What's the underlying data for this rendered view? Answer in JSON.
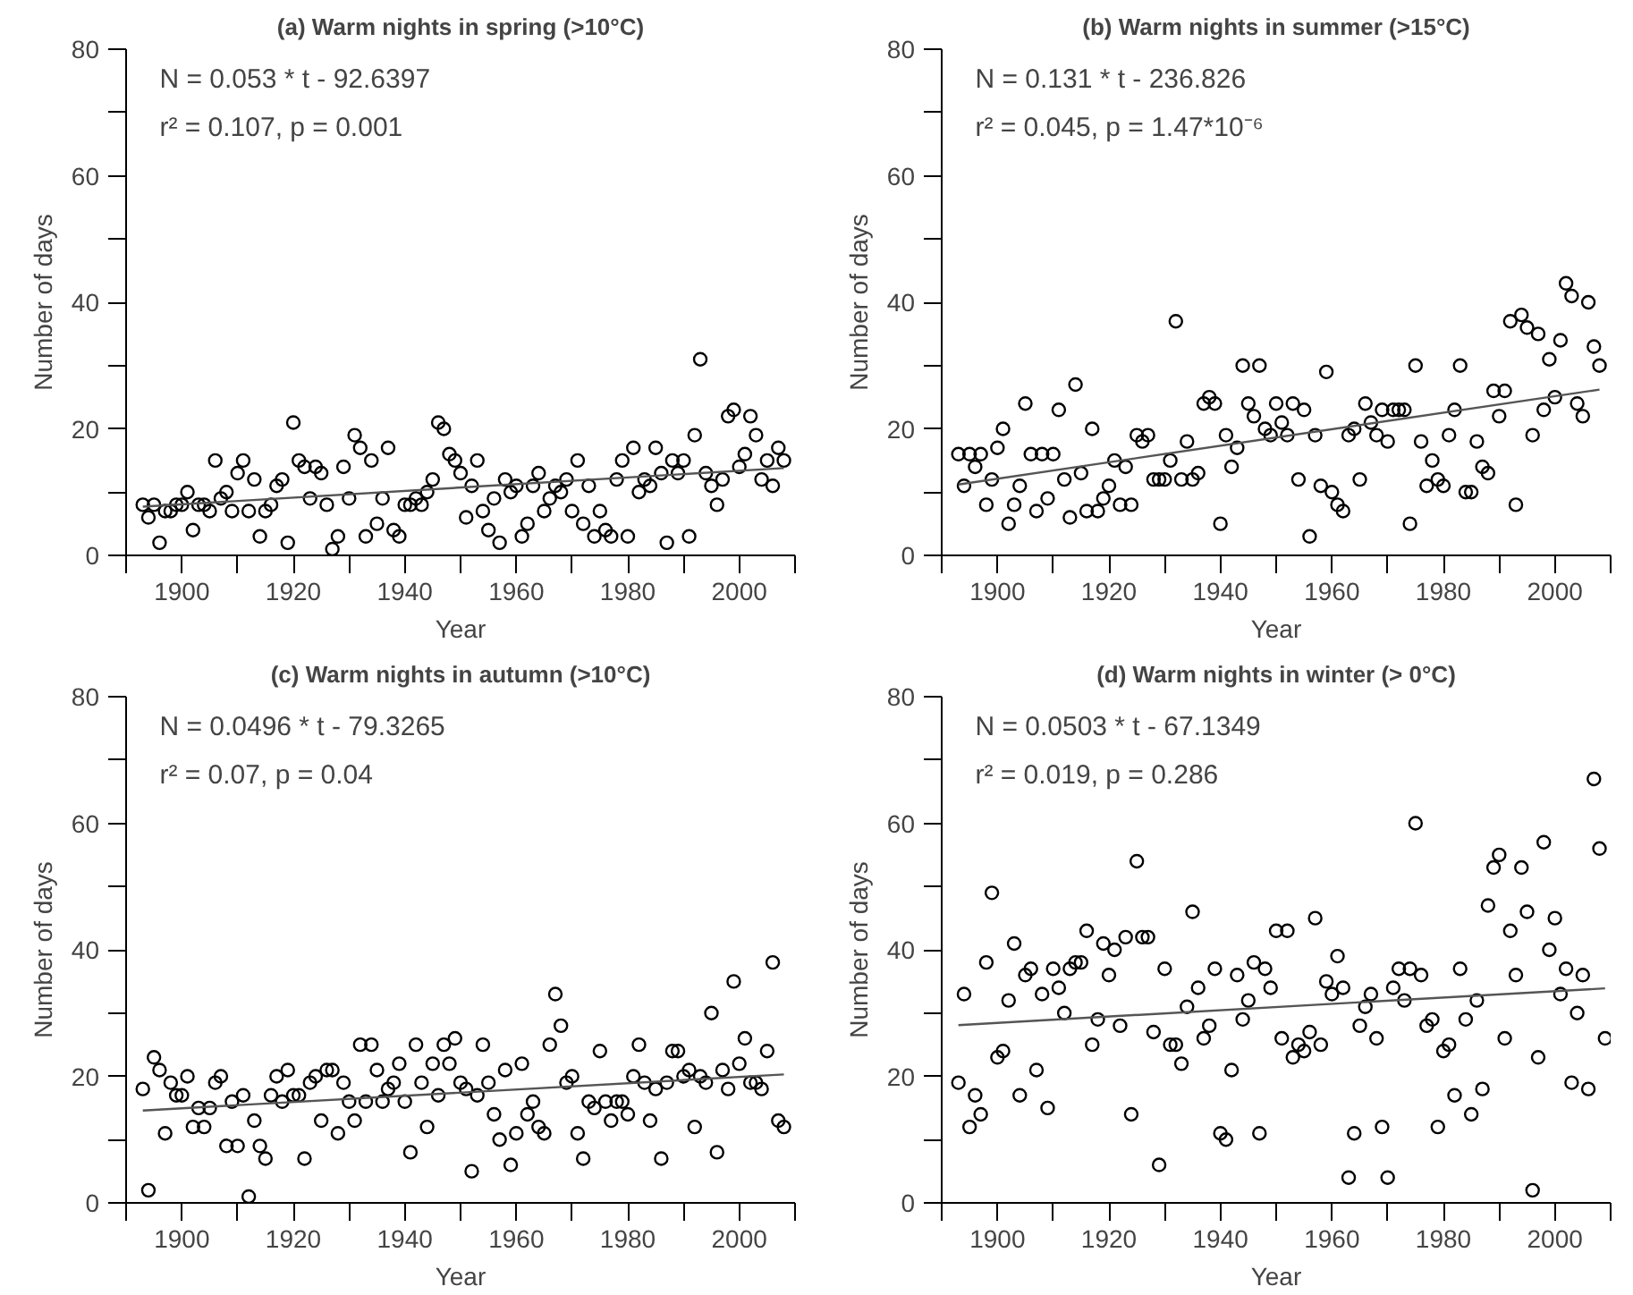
{
  "chart_data": [
    {
      "type": "scatter",
      "title": "(a) Warm nights in spring (>10°C)",
      "xlabel": "Year",
      "ylabel": "Number of days",
      "marker": "circle",
      "xlim": [
        1890,
        2010
      ],
      "ylim": [
        0,
        80
      ],
      "xticks": [
        {
          "value": 1890,
          "label": null
        },
        1900,
        {
          "value": 1910,
          "label": null
        },
        1920,
        {
          "value": 1930,
          "label": null
        },
        1940,
        {
          "value": 1950,
          "label": null
        },
        1960,
        {
          "value": 1970,
          "label": null
        },
        1980,
        {
          "value": 1990,
          "label": null
        },
        2000,
        {
          "value": 2010,
          "label": null
        }
      ],
      "yticks": [
        0,
        {
          "value": 10,
          "label": null
        },
        20,
        {
          "value": 30,
          "label": null
        },
        40,
        {
          "value": 50,
          "label": null
        },
        60,
        {
          "value": 70,
          "label": null
        },
        80
      ],
      "annotations": [
        "N = 0.053 * t - 92.6397",
        "r² = 0.107, p = 0.001"
      ],
      "series": [
        {
          "color": "#000000",
          "x": [
            1893,
            1894,
            1895,
            1896,
            1897,
            1898,
            1899,
            1900,
            1901,
            1902,
            1903,
            1904,
            1905,
            1906,
            1907,
            1908,
            1909,
            1910,
            1911,
            1912,
            1913,
            1914,
            1915,
            1916,
            1917,
            1918,
            1919,
            1920,
            1921,
            1922,
            1923,
            1924,
            1925,
            1926,
            1927,
            1928,
            1929,
            1930,
            1931,
            1932,
            1933,
            1934,
            1935,
            1936,
            1937,
            1938,
            1939,
            1940,
            1941,
            1942,
            1943,
            1944,
            1945,
            1946,
            1947,
            1948,
            1949,
            1950,
            1951,
            1952,
            1953,
            1954,
            1955,
            1956,
            1957,
            1958,
            1959,
            1960,
            1961,
            1962,
            1963,
            1964,
            1965,
            1966,
            1967,
            1968,
            1969,
            1970,
            1971,
            1972,
            1973,
            1974,
            1975,
            1976,
            1977,
            1978,
            1979,
            1980,
            1981,
            1982,
            1983,
            1984,
            1985,
            1986,
            1987,
            1988,
            1989,
            1990,
            1991,
            1992,
            1993,
            1994,
            1995,
            1996,
            1997,
            1998,
            1999,
            2000,
            2001,
            2002,
            2003,
            2004,
            2005,
            2006,
            2007,
            2008
          ],
          "values": [
            8,
            6,
            8,
            2,
            7,
            7,
            8,
            8,
            10,
            4,
            8,
            8,
            7,
            15,
            9,
            10,
            7,
            13,
            15,
            7,
            12,
            3,
            7,
            8,
            11,
            12,
            2,
            21,
            15,
            14,
            9,
            14,
            13,
            8,
            1,
            3,
            14,
            9,
            19,
            17,
            3,
            15,
            5,
            9,
            17,
            4,
            3,
            8,
            8,
            9,
            8,
            10,
            12,
            21,
            20,
            16,
            15,
            13,
            6,
            11,
            15,
            7,
            4,
            9,
            2,
            12,
            10,
            11,
            3,
            5,
            11,
            13,
            7,
            9,
            11,
            10,
            12,
            7,
            15,
            5,
            11,
            3,
            7,
            4,
            3,
            12,
            15,
            3,
            17,
            10,
            12,
            11,
            17,
            13,
            2,
            15,
            13,
            15,
            3,
            19,
            31,
            13,
            11,
            8,
            12,
            22,
            23,
            14,
            16,
            22,
            19,
            12,
            15,
            11,
            17,
            15
          ]
        },
        {
          "type": "line",
          "marker": "none",
          "color": "#555555",
          "x": [
            1893,
            2008
          ],
          "values": [
            7.7,
            13.8
          ]
        }
      ]
    },
    {
      "type": "scatter",
      "title": "(b) Warm nights in summer (>15°C)",
      "xlabel": "Year",
      "ylabel": "Number of days",
      "marker": "circle",
      "xlim": [
        1890,
        2010
      ],
      "ylim": [
        0,
        80
      ],
      "xticks": [
        {
          "value": 1890,
          "label": null
        },
        1900,
        {
          "value": 1910,
          "label": null
        },
        1920,
        {
          "value": 1930,
          "label": null
        },
        1940,
        {
          "value": 1950,
          "label": null
        },
        1960,
        {
          "value": 1970,
          "label": null
        },
        1980,
        {
          "value": 1990,
          "label": null
        },
        2000,
        {
          "value": 2010,
          "label": null
        }
      ],
      "yticks": [
        0,
        {
          "value": 10,
          "label": null
        },
        20,
        {
          "value": 30,
          "label": null
        },
        40,
        {
          "value": 50,
          "label": null
        },
        60,
        {
          "value": 70,
          "label": null
        },
        80
      ],
      "annotations": [
        "N = 0.131 * t - 236.826",
        "r² = 0.045, p = 1.47*10⁻⁶"
      ],
      "series": [
        {
          "color": "#000000",
          "x": [
            1893,
            1894,
            1895,
            1896,
            1897,
            1898,
            1899,
            1900,
            1901,
            1902,
            1903,
            1904,
            1905,
            1906,
            1907,
            1908,
            1909,
            1910,
            1911,
            1912,
            1913,
            1914,
            1915,
            1916,
            1917,
            1918,
            1919,
            1920,
            1921,
            1922,
            1923,
            1924,
            1925,
            1926,
            1927,
            1928,
            1929,
            1930,
            1931,
            1932,
            1933,
            1934,
            1935,
            1936,
            1937,
            1938,
            1939,
            1940,
            1941,
            1942,
            1943,
            1944,
            1945,
            1946,
            1947,
            1948,
            1949,
            1950,
            1951,
            1952,
            1953,
            1954,
            1955,
            1956,
            1957,
            1958,
            1959,
            1960,
            1961,
            1962,
            1963,
            1964,
            1965,
            1966,
            1967,
            1968,
            1969,
            1970,
            1971,
            1972,
            1973,
            1974,
            1975,
            1976,
            1977,
            1978,
            1979,
            1980,
            1981,
            1982,
            1983,
            1984,
            1985,
            1986,
            1987,
            1988,
            1989,
            1990,
            1991,
            1992,
            1993,
            1994,
            1995,
            1996,
            1997,
            1998,
            1999,
            2000,
            2001,
            2002,
            2003,
            2004,
            2005,
            2006,
            2007,
            2008
          ],
          "values": [
            16,
            11,
            16,
            14,
            16,
            8,
            12,
            17,
            20,
            5,
            8,
            11,
            24,
            16,
            7,
            16,
            9,
            16,
            23,
            12,
            6,
            27,
            13,
            7,
            20,
            7,
            9,
            11,
            15,
            8,
            14,
            8,
            19,
            18,
            19,
            12,
            12,
            12,
            15,
            37,
            12,
            18,
            12,
            13,
            24,
            25,
            24,
            5,
            19,
            14,
            17,
            30,
            24,
            22,
            30,
            20,
            19,
            24,
            21,
            19,
            24,
            12,
            23,
            3,
            19,
            11,
            29,
            10,
            8,
            7,
            19,
            20,
            12,
            24,
            21,
            19,
            23,
            18,
            23,
            23,
            23,
            5,
            30,
            18,
            11,
            15,
            12,
            11,
            19,
            23,
            30,
            10,
            10,
            18,
            14,
            13,
            26,
            22,
            26,
            37,
            8,
            38,
            36,
            19,
            35,
            23,
            31,
            25,
            34,
            43,
            41,
            24,
            22,
            40,
            33,
            30
          ]
        },
        {
          "type": "line",
          "marker": "none",
          "color": "#555555",
          "x": [
            1893,
            2008
          ],
          "values": [
            11.2,
            26.2
          ]
        }
      ]
    },
    {
      "type": "scatter",
      "title": "(c) Warm nights in autumn (>10°C)",
      "xlabel": "Year",
      "ylabel": "Number of days",
      "marker": "circle",
      "xlim": [
        1890,
        2010
      ],
      "ylim": [
        0,
        80
      ],
      "xticks": [
        {
          "value": 1890,
          "label": null
        },
        1900,
        {
          "value": 1910,
          "label": null
        },
        1920,
        {
          "value": 1930,
          "label": null
        },
        1940,
        {
          "value": 1950,
          "label": null
        },
        1960,
        {
          "value": 1970,
          "label": null
        },
        1980,
        {
          "value": 1990,
          "label": null
        },
        2000,
        {
          "value": 2010,
          "label": null
        }
      ],
      "yticks": [
        0,
        {
          "value": 10,
          "label": null
        },
        20,
        {
          "value": 30,
          "label": null
        },
        40,
        {
          "value": 50,
          "label": null
        },
        60,
        {
          "value": 70,
          "label": null
        },
        80
      ],
      "annotations": [
        "N = 0.0496 * t - 79.3265",
        "r² = 0.07, p = 0.04"
      ],
      "series": [
        {
          "color": "#000000",
          "x": [
            1893,
            1894,
            1895,
            1896,
            1897,
            1898,
            1899,
            1900,
            1901,
            1902,
            1903,
            1904,
            1905,
            1906,
            1907,
            1908,
            1909,
            1910,
            1911,
            1912,
            1913,
            1914,
            1915,
            1916,
            1917,
            1918,
            1919,
            1920,
            1921,
            1922,
            1923,
            1924,
            1925,
            1926,
            1927,
            1928,
            1929,
            1930,
            1931,
            1932,
            1933,
            1934,
            1935,
            1936,
            1937,
            1938,
            1939,
            1940,
            1941,
            1942,
            1943,
            1944,
            1945,
            1946,
            1947,
            1948,
            1949,
            1950,
            1951,
            1952,
            1953,
            1954,
            1955,
            1956,
            1957,
            1958,
            1959,
            1960,
            1961,
            1962,
            1963,
            1964,
            1965,
            1966,
            1967,
            1968,
            1969,
            1970,
            1971,
            1972,
            1973,
            1974,
            1975,
            1976,
            1977,
            1978,
            1979,
            1980,
            1981,
            1982,
            1983,
            1984,
            1985,
            1986,
            1987,
            1988,
            1989,
            1990,
            1991,
            1992,
            1993,
            1994,
            1995,
            1996,
            1997,
            1998,
            1999,
            2000,
            2001,
            2002,
            2003,
            2004,
            2005,
            2006,
            2007,
            2008
          ],
          "values": [
            18,
            2,
            23,
            21,
            11,
            19,
            17,
            17,
            20,
            12,
            15,
            12,
            15,
            19,
            20,
            9,
            16,
            9,
            17,
            1,
            13,
            9,
            7,
            17,
            20,
            16,
            21,
            17,
            17,
            7,
            19,
            20,
            13,
            21,
            21,
            11,
            19,
            16,
            13,
            25,
            16,
            25,
            21,
            16,
            18,
            19,
            22,
            16,
            8,
            25,
            19,
            12,
            22,
            17,
            25,
            22,
            26,
            19,
            18,
            5,
            17,
            25,
            19,
            14,
            10,
            21,
            6,
            11,
            22,
            14,
            16,
            12,
            11,
            25,
            33,
            28,
            19,
            20,
            11,
            7,
            16,
            15,
            24,
            16,
            13,
            16,
            16,
            14,
            20,
            25,
            19,
            13,
            18,
            7,
            19,
            24,
            24,
            20,
            21,
            12,
            20,
            19,
            30,
            8,
            21,
            18,
            35,
            22,
            26,
            19,
            19,
            18,
            24,
            38,
            13,
            12
          ]
        },
        {
          "type": "line",
          "marker": "none",
          "color": "#555555",
          "x": [
            1893,
            2008
          ],
          "values": [
            14.6,
            20.3
          ]
        }
      ]
    },
    {
      "type": "scatter",
      "title": "(d) Warm nights in winter (> 0°C)",
      "xlabel": "Year",
      "ylabel": "Number of days",
      "marker": "circle",
      "xlim": [
        1890,
        2010
      ],
      "ylim": [
        0,
        80
      ],
      "xticks": [
        {
          "value": 1890,
          "label": null
        },
        1900,
        {
          "value": 1910,
          "label": null
        },
        1920,
        {
          "value": 1930,
          "label": null
        },
        1940,
        {
          "value": 1950,
          "label": null
        },
        1960,
        {
          "value": 1970,
          "label": null
        },
        1980,
        {
          "value": 1990,
          "label": null
        },
        2000,
        {
          "value": 2010,
          "label": null
        }
      ],
      "yticks": [
        0,
        {
          "value": 10,
          "label": null
        },
        20,
        {
          "value": 30,
          "label": null
        },
        40,
        {
          "value": 50,
          "label": null
        },
        60,
        {
          "value": 70,
          "label": null
        },
        80
      ],
      "annotations": [
        "N = 0.0503 * t - 67.1349",
        "r² = 0.019, p = 0.286"
      ],
      "series": [
        {
          "color": "#000000",
          "x": [
            1893,
            1894,
            1895,
            1896,
            1897,
            1898,
            1899,
            1900,
            1901,
            1902,
            1903,
            1904,
            1905,
            1906,
            1907,
            1908,
            1909,
            1910,
            1911,
            1912,
            1913,
            1914,
            1915,
            1916,
            1917,
            1918,
            1919,
            1920,
            1921,
            1922,
            1923,
            1924,
            1925,
            1926,
            1927,
            1928,
            1929,
            1930,
            1931,
            1932,
            1933,
            1934,
            1935,
            1936,
            1937,
            1938,
            1939,
            1940,
            1941,
            1942,
            1943,
            1944,
            1945,
            1946,
            1947,
            1948,
            1949,
            1950,
            1951,
            1952,
            1953,
            1954,
            1955,
            1956,
            1957,
            1958,
            1959,
            1960,
            1961,
            1962,
            1963,
            1964,
            1965,
            1966,
            1967,
            1968,
            1969,
            1970,
            1971,
            1972,
            1973,
            1974,
            1975,
            1976,
            1977,
            1978,
            1979,
            1980,
            1981,
            1982,
            1983,
            1984,
            1985,
            1986,
            1987,
            1988,
            1989,
            1990,
            1991,
            1992,
            1993,
            1994,
            1995,
            1996,
            1997,
            1998,
            1999,
            2000,
            2001,
            2002,
            2003,
            2004,
            2005,
            2006,
            2007,
            2008,
            2009
          ],
          "values": [
            19,
            33,
            12,
            17,
            14,
            38,
            49,
            23,
            24,
            32,
            41,
            17,
            36,
            37,
            21,
            33,
            15,
            37,
            34,
            30,
            37,
            38,
            38,
            43,
            25,
            29,
            41,
            36,
            40,
            28,
            42,
            14,
            54,
            42,
            42,
            27,
            6,
            37,
            25,
            25,
            22,
            31,
            46,
            34,
            26,
            28,
            37,
            11,
            10,
            21,
            36,
            29,
            32,
            38,
            11,
            37,
            34,
            43,
            26,
            43,
            23,
            25,
            24,
            27,
            45,
            25,
            35,
            33,
            39,
            34,
            4,
            11,
            28,
            31,
            33,
            26,
            12,
            4,
            34,
            37,
            32,
            37,
            60,
            36,
            28,
            29,
            12,
            24,
            25,
            17,
            37,
            29,
            14,
            32,
            18,
            47,
            53,
            55,
            26,
            43,
            36,
            53,
            46,
            2,
            23,
            57,
            40,
            45,
            33,
            37,
            19,
            30,
            36,
            18,
            67,
            56,
            26
          ]
        },
        {
          "type": "line",
          "marker": "none",
          "color": "#555555",
          "x": [
            1893,
            2009
          ],
          "values": [
            28.1,
            33.9
          ]
        }
      ]
    }
  ]
}
